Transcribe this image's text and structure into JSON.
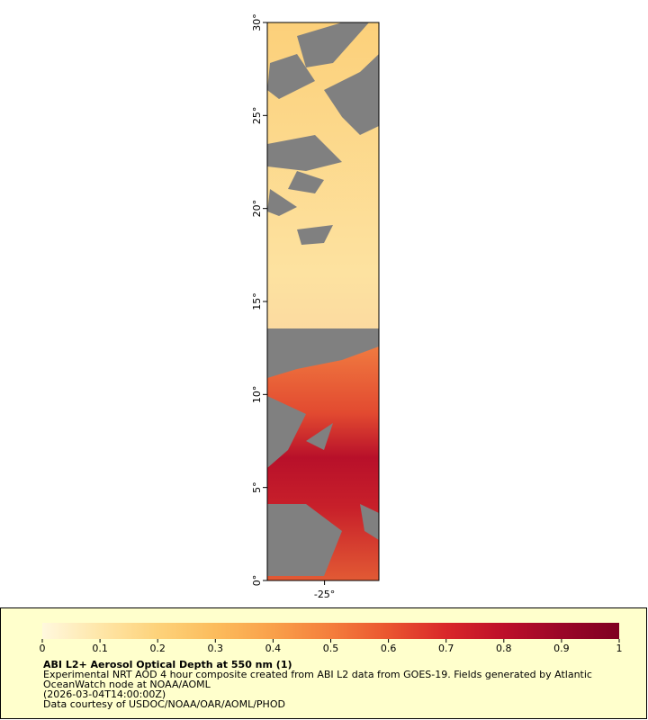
{
  "map": {
    "lat_range": [
      0,
      30
    ],
    "lon_range": [
      -27,
      -23.1
    ],
    "lat_ticks": [
      {
        "value": 0,
        "label": "0°"
      },
      {
        "value": 5,
        "label": "5°"
      },
      {
        "value": 10,
        "label": "10°"
      },
      {
        "value": 15,
        "label": "15°"
      },
      {
        "value": 20,
        "label": "20°"
      },
      {
        "value": 25,
        "label": "25°"
      },
      {
        "value": 30,
        "label": "30°"
      }
    ],
    "lon_ticks": [
      {
        "value": -25,
        "label": "-25°"
      }
    ]
  },
  "colorbar": {
    "range": [
      0,
      1
    ],
    "ticks": [
      0,
      0.1,
      0.2,
      0.3,
      0.4,
      0.5,
      0.6,
      0.7,
      0.8,
      0.9,
      1
    ],
    "colors": [
      "#fff8de",
      "#fee6a8",
      "#fdd27a",
      "#fcbc5c",
      "#f9a04a",
      "#f47e3c",
      "#ea5530",
      "#d9272a",
      "#bd0f2a",
      "#9a0628",
      "#7f0021"
    ]
  },
  "legend": {
    "title": "ABI L2+ Aerosol Optical Depth at 550 nm (1)",
    "lines": [
      "Experimental NRT AOD 4 hour composite created from ABI L2 data from GOES-19. Fields generated by Atlantic",
      "OceanWatch node at NOAA/AOML",
      "(2026-03-04T14:00:00Z)",
      "Data courtesy of USDOC/NOAA/OAR/AOML/PHOD"
    ]
  }
}
